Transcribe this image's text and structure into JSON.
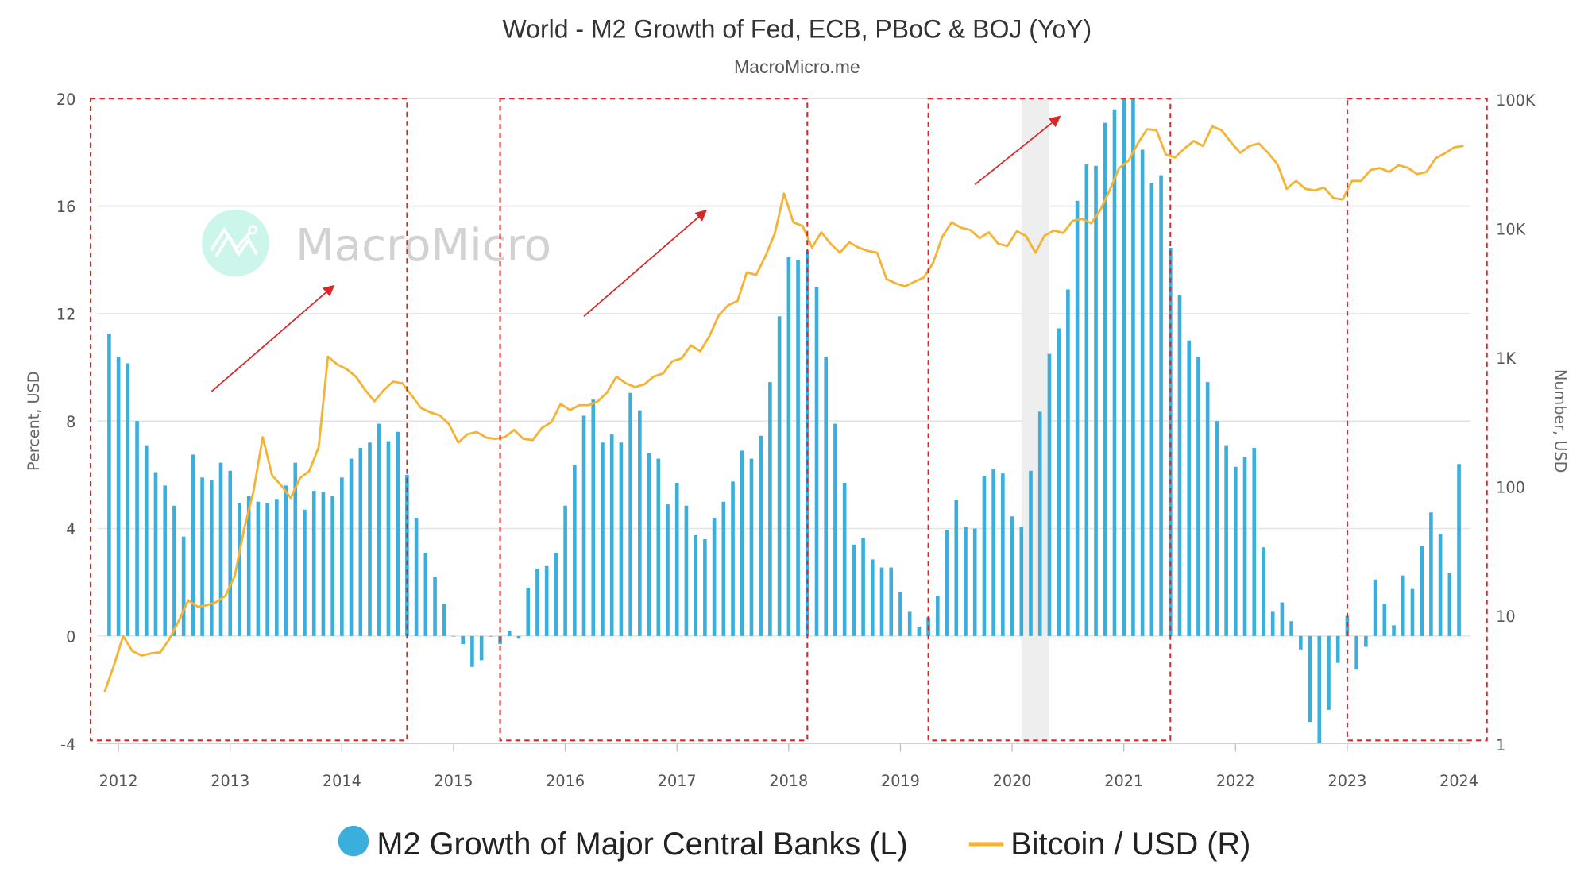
{
  "chart_data": {
    "type": "bar+line",
    "title": "World - M2 Growth of Fed, ECB, PBoC & BOJ (YoY)",
    "subtitle": "MacroMicro.me",
    "watermark": "MacroMicro",
    "ylabel_left": "Percent, USD",
    "ylabel_right": "Number, USD",
    "xlim": [
      "2011-10",
      "2024-03"
    ],
    "ylim_left": [
      -4,
      20
    ],
    "yticks_left": [
      "20",
      "16",
      "12",
      "8",
      "4",
      "0",
      "-4"
    ],
    "ylim_right": [
      1,
      100000
    ],
    "yscale_right": "log",
    "yticks_right": [
      "100K",
      "10K",
      "1K",
      "100",
      "10",
      "1"
    ],
    "xticks": [
      "2012",
      "2013",
      "2014",
      "2015",
      "2016",
      "2017",
      "2018",
      "2019",
      "2020",
      "2021",
      "2022",
      "2023",
      "2024"
    ],
    "grid": true,
    "legend_placement": "bottom",
    "colors": {
      "bars": "#3aaedc",
      "line": "#f5b335",
      "annotation": "#d62a2a",
      "shade": "#eeeeee"
    },
    "series": [
      {
        "name": "M2 Growth of Major Central Banks (L)",
        "type": "bar",
        "axis": "left",
        "start_month": "2011-12",
        "frequency": "monthly",
        "values": [
          11.25,
          10.4,
          10.15,
          8.0,
          7.1,
          6.1,
          5.6,
          4.85,
          3.7,
          6.75,
          5.9,
          5.8,
          6.45,
          6.15,
          4.95,
          5.2,
          5.0,
          4.95,
          5.1,
          5.6,
          6.45,
          4.7,
          5.4,
          5.35,
          5.2,
          5.9,
          6.6,
          7.0,
          7.2,
          7.9,
          7.25,
          7.6,
          6.0,
          4.4,
          3.1,
          2.2,
          1.2,
          0.0,
          -0.3,
          -1.15,
          -0.9,
          0.0,
          -0.3,
          0.2,
          -0.1,
          1.8,
          2.5,
          2.6,
          3.1,
          4.85,
          6.35,
          8.2,
          8.8,
          7.2,
          7.5,
          7.2,
          9.05,
          8.4,
          6.8,
          6.6,
          4.9,
          5.7,
          4.85,
          3.75,
          3.6,
          4.4,
          5.0,
          5.75,
          6.9,
          6.6,
          7.45,
          9.45,
          11.9,
          14.1,
          14.0,
          14.35,
          13.0,
          10.4,
          7.9,
          5.7,
          3.4,
          3.65,
          2.85,
          2.55,
          2.55,
          1.65,
          0.9,
          0.35,
          0.7,
          1.5,
          3.95,
          5.05,
          4.05,
          4.0,
          5.95,
          6.2,
          6.05,
          4.45,
          4.05,
          6.15,
          8.35,
          10.5,
          11.45,
          12.9,
          16.2,
          17.55,
          17.5,
          19.1,
          19.6,
          20.0,
          20.0,
          18.1,
          16.85,
          17.15,
          14.45,
          12.7,
          11.0,
          10.4,
          9.45,
          8.0,
          7.1,
          6.3,
          6.65,
          7.0,
          3.3,
          0.9,
          1.25,
          0.55,
          -0.5,
          -3.2,
          -4.0,
          -2.75,
          -1.0,
          0.75,
          -1.25,
          -0.4,
          2.1,
          1.2,
          0.4,
          2.25,
          1.75,
          3.35,
          4.6,
          3.8,
          2.35,
          6.4
        ]
      },
      {
        "name": "Bitcoin / USD (R)",
        "type": "line",
        "axis": "right",
        "points": [
          [
            "2011-11",
            2.5
          ],
          [
            "2011-12",
            4
          ],
          [
            "2012-01",
            6.8
          ],
          [
            "2012-02",
            5.2
          ],
          [
            "2012-03",
            4.8
          ],
          [
            "2012-04",
            5.0
          ],
          [
            "2012-05",
            5.1
          ],
          [
            "2012-06",
            6.5
          ],
          [
            "2012-07",
            9
          ],
          [
            "2012-08",
            12.9
          ],
          [
            "2012-09",
            11.5
          ],
          [
            "2012-10",
            11.8
          ],
          [
            "2012-11",
            12.5
          ],
          [
            "2012-12",
            14
          ],
          [
            "2013-01",
            20
          ],
          [
            "2013-02",
            46
          ],
          [
            "2013-03",
            90
          ],
          [
            "2013-04",
            237
          ],
          [
            "2013-05",
            120
          ],
          [
            "2013-06",
            100
          ],
          [
            "2013-07",
            80
          ],
          [
            "2013-08",
            114
          ],
          [
            "2013-09",
            130
          ],
          [
            "2013-10",
            197
          ],
          [
            "2013-11",
            1000
          ],
          [
            "2013-12",
            870
          ],
          [
            "2014-01",
            800
          ],
          [
            "2014-02",
            700
          ],
          [
            "2014-03",
            550
          ],
          [
            "2014-04",
            450
          ],
          [
            "2014-05",
            550
          ],
          [
            "2014-06",
            640
          ],
          [
            "2014-07",
            620
          ],
          [
            "2014-08",
            500
          ],
          [
            "2014-09",
            400
          ],
          [
            "2014-10",
            370
          ],
          [
            "2014-11",
            350
          ],
          [
            "2014-12",
            300
          ],
          [
            "2015-01",
            215
          ],
          [
            "2015-02",
            250
          ],
          [
            "2015-03",
            260
          ],
          [
            "2015-04",
            235
          ],
          [
            "2015-05",
            230
          ],
          [
            "2015-06",
            237
          ],
          [
            "2015-07",
            270
          ],
          [
            "2015-08",
            230
          ],
          [
            "2015-09",
            225
          ],
          [
            "2015-10",
            280
          ],
          [
            "2015-11",
            310
          ],
          [
            "2015-12",
            430
          ],
          [
            "2016-01",
            385
          ],
          [
            "2016-02",
            420
          ],
          [
            "2016-03",
            420
          ],
          [
            "2016-04",
            450
          ],
          [
            "2016-05",
            530
          ],
          [
            "2016-06",
            700
          ],
          [
            "2016-07",
            620
          ],
          [
            "2016-08",
            580
          ],
          [
            "2016-09",
            610
          ],
          [
            "2016-10",
            700
          ],
          [
            "2016-11",
            740
          ],
          [
            "2016-12",
            920
          ],
          [
            "2017-01",
            970
          ],
          [
            "2017-02",
            1220
          ],
          [
            "2017-03",
            1100
          ],
          [
            "2017-04",
            1450
          ],
          [
            "2017-05",
            2100
          ],
          [
            "2017-06",
            2500
          ],
          [
            "2017-07",
            2700
          ],
          [
            "2017-08",
            4500
          ],
          [
            "2017-09",
            4300
          ],
          [
            "2017-10",
            6000
          ],
          [
            "2017-11",
            9000
          ],
          [
            "2017-12",
            18400
          ],
          [
            "2018-01",
            11000
          ],
          [
            "2018-02",
            10300
          ],
          [
            "2018-03",
            7000
          ],
          [
            "2018-04",
            9200
          ],
          [
            "2018-05",
            7500
          ],
          [
            "2018-06",
            6400
          ],
          [
            "2018-07",
            7700
          ],
          [
            "2018-08",
            7000
          ],
          [
            "2018-09",
            6600
          ],
          [
            "2018-10",
            6400
          ],
          [
            "2018-11",
            4000
          ],
          [
            "2018-12",
            3700
          ],
          [
            "2019-01",
            3500
          ],
          [
            "2019-02",
            3800
          ],
          [
            "2019-03",
            4100
          ],
          [
            "2019-04",
            5300
          ],
          [
            "2019-05",
            8500
          ],
          [
            "2019-06",
            11000
          ],
          [
            "2019-07",
            10000
          ],
          [
            "2019-08",
            9600
          ],
          [
            "2019-09",
            8300
          ],
          [
            "2019-10",
            9200
          ],
          [
            "2019-11",
            7500
          ],
          [
            "2019-12",
            7200
          ],
          [
            "2020-01",
            9400
          ],
          [
            "2020-02",
            8600
          ],
          [
            "2020-03",
            6400
          ],
          [
            "2020-04",
            8700
          ],
          [
            "2020-05",
            9500
          ],
          [
            "2020-06",
            9100
          ],
          [
            "2020-07",
            11300
          ],
          [
            "2020-08",
            11700
          ],
          [
            "2020-09",
            10800
          ],
          [
            "2020-10",
            13800
          ],
          [
            "2020-11",
            19700
          ],
          [
            "2020-12",
            29000
          ],
          [
            "2021-01",
            33000
          ],
          [
            "2021-02",
            45000
          ],
          [
            "2021-03",
            58000
          ],
          [
            "2021-04",
            57000
          ],
          [
            "2021-05",
            37000
          ],
          [
            "2021-06",
            35000
          ],
          [
            "2021-07",
            41000
          ],
          [
            "2021-08",
            47000
          ],
          [
            "2021-09",
            43000
          ],
          [
            "2021-10",
            61000
          ],
          [
            "2021-11",
            57000
          ],
          [
            "2021-12",
            46000
          ],
          [
            "2022-01",
            38000
          ],
          [
            "2022-02",
            43000
          ],
          [
            "2022-03",
            45000
          ],
          [
            "2022-04",
            38000
          ],
          [
            "2022-05",
            31000
          ],
          [
            "2022-06",
            20000
          ],
          [
            "2022-07",
            23000
          ],
          [
            "2022-08",
            20000
          ],
          [
            "2022-09",
            19400
          ],
          [
            "2022-10",
            20500
          ],
          [
            "2022-11",
            17000
          ],
          [
            "2022-12",
            16500
          ],
          [
            "2023-01",
            23000
          ],
          [
            "2023-02",
            23000
          ],
          [
            "2023-03",
            28000
          ],
          [
            "2023-04",
            29000
          ],
          [
            "2023-05",
            27000
          ],
          [
            "2023-06",
            30500
          ],
          [
            "2023-07",
            29200
          ],
          [
            "2023-08",
            26000
          ],
          [
            "2023-09",
            27000
          ],
          [
            "2023-10",
            34500
          ],
          [
            "2023-11",
            37700
          ],
          [
            "2023-12",
            42000
          ],
          [
            "2024-01",
            43000
          ]
        ]
      }
    ],
    "shaded_ranges": [
      [
        "2020-02",
        "2020-04"
      ]
    ],
    "annotation_boxes": [
      [
        "2011-10",
        "2014-07"
      ],
      [
        "2015-06",
        "2018-02"
      ],
      [
        "2019-04",
        "2021-05"
      ],
      [
        "2023-01",
        "2024-03"
      ]
    ],
    "annotation_arrows": [
      {
        "from": [
          "2012-11",
          9.1
        ],
        "to": [
          "2013-12",
          13.0
        ]
      },
      {
        "from": [
          "2016-03",
          11.9
        ],
        "to": [
          "2017-04",
          15.8
        ]
      },
      {
        "from": [
          "2019-09",
          16.8
        ],
        "to": [
          "2020-06",
          19.3
        ]
      }
    ]
  }
}
